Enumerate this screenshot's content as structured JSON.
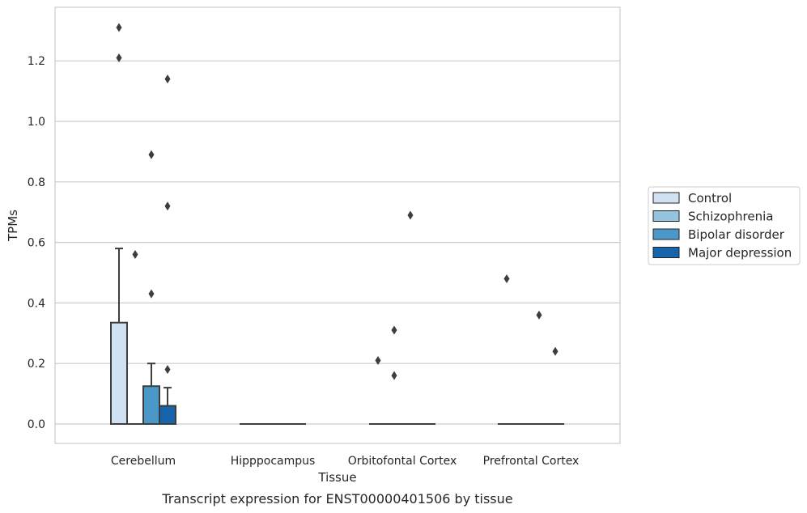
{
  "chart_data": {
    "type": "box",
    "title": "",
    "caption": "Transcript expression for ENST00000401506 by tissue",
    "xlabel": "Tissue",
    "ylabel": "TPMs",
    "ylim": [
      -0.065,
      1.38
    ],
    "yticks": [
      0.0,
      0.2,
      0.4,
      0.6,
      0.8,
      1.0,
      1.2
    ],
    "ytick_labels": [
      "0.0",
      "0.2",
      "0.4",
      "0.6",
      "0.8",
      "1.0",
      "1.2"
    ],
    "grid": "horizontal",
    "legend_position": "right",
    "categories": [
      "Cerebellum",
      "Hipppocampus",
      "Orbitofontal Cortex",
      "Prefrontal Cortex"
    ],
    "series": [
      {
        "name": "Control",
        "color": "#d0e1f2",
        "boxes": [
          {
            "q1": 0.0,
            "median": 0.0,
            "q3": 0.335,
            "whisker_low": 0.0,
            "whisker_high": 0.58,
            "outliers": [
              1.31,
              1.21
            ]
          },
          {
            "q1": 0.0,
            "median": 0.0,
            "q3": 0.0,
            "whisker_low": 0.0,
            "whisker_high": 0.0,
            "outliers": []
          },
          {
            "q1": 0.0,
            "median": 0.0,
            "q3": 0.0,
            "whisker_low": 0.0,
            "whisker_high": 0.0,
            "outliers": [
              0.21
            ]
          },
          {
            "q1": 0.0,
            "median": 0.0,
            "q3": 0.0,
            "whisker_low": 0.0,
            "whisker_high": 0.0,
            "outliers": [
              0.48
            ]
          }
        ]
      },
      {
        "name": "Schizophrenia",
        "color": "#94c4df",
        "boxes": [
          {
            "q1": 0.0,
            "median": 0.0,
            "q3": 0.0,
            "whisker_low": 0.0,
            "whisker_high": 0.0,
            "outliers": [
              0.56
            ]
          },
          {
            "q1": 0.0,
            "median": 0.0,
            "q3": 0.0,
            "whisker_low": 0.0,
            "whisker_high": 0.0,
            "outliers": []
          },
          {
            "q1": 0.0,
            "median": 0.0,
            "q3": 0.0,
            "whisker_low": 0.0,
            "whisker_high": 0.0,
            "outliers": [
              0.31,
              0.16
            ]
          },
          {
            "q1": 0.0,
            "median": 0.0,
            "q3": 0.0,
            "whisker_low": 0.0,
            "whisker_high": 0.0,
            "outliers": []
          }
        ]
      },
      {
        "name": "Bipolar disorder",
        "color": "#4a98c9",
        "boxes": [
          {
            "q1": 0.0,
            "median": 0.0,
            "q3": 0.125,
            "whisker_low": 0.0,
            "whisker_high": 0.2,
            "outliers": [
              0.89,
              0.43
            ]
          },
          {
            "q1": 0.0,
            "median": 0.0,
            "q3": 0.0,
            "whisker_low": 0.0,
            "whisker_high": 0.0,
            "outliers": []
          },
          {
            "q1": 0.0,
            "median": 0.0,
            "q3": 0.0,
            "whisker_low": 0.0,
            "whisker_high": 0.0,
            "outliers": [
              0.69
            ]
          },
          {
            "q1": 0.0,
            "median": 0.0,
            "q3": 0.0,
            "whisker_low": 0.0,
            "whisker_high": 0.0,
            "outliers": [
              0.36
            ]
          }
        ]
      },
      {
        "name": "Major depression",
        "color": "#1764ab",
        "boxes": [
          {
            "q1": 0.0,
            "median": 0.0,
            "q3": 0.06,
            "whisker_low": 0.0,
            "whisker_high": 0.12,
            "outliers": [
              1.14,
              0.72,
              0.18
            ]
          },
          {
            "q1": 0.0,
            "median": 0.0,
            "q3": 0.0,
            "whisker_low": 0.0,
            "whisker_high": 0.0,
            "outliers": []
          },
          {
            "q1": 0.0,
            "median": 0.0,
            "q3": 0.0,
            "whisker_low": 0.0,
            "whisker_high": 0.0,
            "outliers": []
          },
          {
            "q1": 0.0,
            "median": 0.0,
            "q3": 0.0,
            "whisker_low": 0.0,
            "whisker_high": 0.0,
            "outliers": [
              0.24
            ]
          }
        ]
      }
    ],
    "colors": {
      "grid": "#cccccc",
      "frame": "#cccccc",
      "box_edge": "#3d3d3d",
      "outlier": "#3d3d3d",
      "legend_border": "#cccccc"
    }
  }
}
